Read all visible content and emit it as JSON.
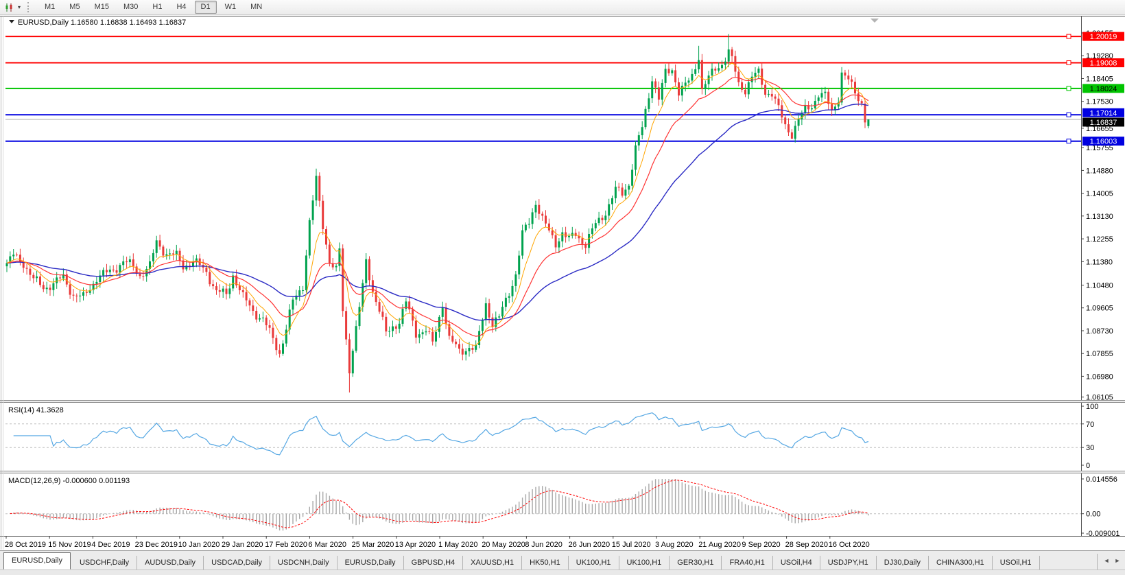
{
  "toolbar": {
    "timeframes": [
      "M1",
      "M5",
      "M15",
      "M30",
      "H1",
      "H4",
      "D1",
      "W1",
      "MN"
    ],
    "selected": "D1",
    "dropdown_caret_icon": "▾"
  },
  "chart": {
    "title": "EURUSD,Daily  1.16580 1.16838 1.16493 1.16837"
  },
  "chart_data": {
    "type": "candlestick+indicators",
    "symbol": "EURUSD",
    "timeframe": "Daily",
    "last_bar_ohlc": {
      "open": 1.1658,
      "high": 1.16838,
      "low": 1.16493,
      "close": 1.16837
    },
    "bars": 260,
    "price_axis": {
      "max": 1.2076,
      "min": 1.0607
    },
    "price_ticks": [
      [
        "1.20155",
        1.20155,
        0
      ],
      [
        "1.19280",
        1.1928,
        0
      ],
      [
        "1.18405",
        1.18405,
        0
      ],
      [
        "1.17530",
        1.1753,
        0
      ],
      [
        "1.16655",
        1.16655,
        6
      ],
      [
        "1.15755",
        1.15755,
        0
      ],
      [
        "1.14880",
        1.1488,
        0
      ],
      [
        "1.14005",
        1.14005,
        0
      ],
      [
        "1.13130",
        1.1313,
        0
      ],
      [
        "1.12255",
        1.12255,
        0
      ],
      [
        "1.11380",
        1.1138,
        0
      ],
      [
        "1.10480",
        1.1048,
        0
      ],
      [
        "1.09605",
        1.09605,
        0
      ],
      [
        "1.08730",
        1.0873,
        0
      ],
      [
        "1.07855",
        1.07855,
        0
      ],
      [
        "1.06980",
        1.0698,
        0
      ],
      [
        "1.06105",
        1.06105,
        -3
      ]
    ],
    "date_ticks": [
      "28 Oct 2019",
      "15 Nov 2019",
      "4 Dec 2019",
      "23 Dec 2019",
      "10 Jan 2020",
      "29 Jan 2020",
      "17 Feb 2020",
      "6 Mar 2020",
      "25 Mar 2020",
      "13 Apr 2020",
      "1 May 2020",
      "20 May 2020",
      "8 Jun 2020",
      "26 Jun 2020",
      "15 Jul 2020",
      "3 Aug 2020",
      "21 Aug 2020",
      "9 Sep 2020",
      "28 Sep 2020",
      "16 Oct 2020"
    ],
    "hlines": [
      {
        "price": 1.20019,
        "label": "1.20019",
        "color": "#FF0000",
        "text_color": "#FFFFFF",
        "tag_dy": 0
      },
      {
        "price": 1.19008,
        "label": "1.19008",
        "color": "#FF0000",
        "text_color": "#FFFFFF",
        "tag_dy": 0
      },
      {
        "price": 1.18024,
        "label": "1.18024",
        "color": "#00C400",
        "text_color": "#000000",
        "tag_dy": 0
      },
      {
        "price": 1.17014,
        "label": "1.17014",
        "color": "#0000E0",
        "text_color": "#FFFFFF",
        "tag_dy": -3
      },
      {
        "price": 1.16003,
        "label": "1.16003",
        "color": "#0000E0",
        "text_color": "#FFFFFF",
        "tag_dy": 0
      }
    ],
    "current_price": {
      "value": 1.16837,
      "label": "1.16837",
      "tag_bg": "#000000",
      "tag_text": "#FFFFFF"
    },
    "ma_periods": {
      "fast": 8,
      "mid": 20,
      "slow": 50
    },
    "rsi": {
      "label": "RSI(14) 41.3628",
      "period": 14,
      "value": 41.3628,
      "levels": [
        70,
        30
      ],
      "axis": [
        [
          "100",
          100
        ],
        [
          "70",
          70
        ],
        [
          "30",
          30
        ],
        [
          "0",
          0
        ]
      ],
      "range": [
        0,
        100
      ]
    },
    "macd": {
      "label": "MACD(12,26,9) -0.000600 0.001193",
      "fast": 12,
      "slow": 26,
      "signal": 9,
      "main_value": -0.0006,
      "signal_value": 0.001193,
      "axis": [
        [
          "0.014556",
          0.014556
        ],
        [
          "0.00",
          0
        ],
        [
          "-0.009001",
          -0.009001
        ]
      ],
      "range": [
        -0.009001,
        0.014556
      ]
    },
    "colors": {
      "up": "#00A24E",
      "down": "#E93A3A",
      "ma_fast": "#FFA500",
      "ma_mid": "#FF3232",
      "ma_slow": "#2A2AC4",
      "rsi": "#55A7E3",
      "macd_hist": "#A8A8A8",
      "macd_signal": "#FF0000",
      "current_line": "#ABABAB",
      "frame": "#555555",
      "level_dash": "#BDBDBD"
    },
    "close_waypoints": [
      [
        0,
        1.1128
      ],
      [
        2,
        1.116
      ],
      [
        5,
        1.1135
      ],
      [
        8,
        1.1068
      ],
      [
        11,
        1.104
      ],
      [
        14,
        1.1052
      ],
      [
        17,
        1.1078
      ],
      [
        20,
        1.101
      ],
      [
        23,
        1.0998
      ],
      [
        27,
        1.1078
      ],
      [
        31,
        1.1098
      ],
      [
        35,
        1.1138
      ],
      [
        38,
        1.1118
      ],
      [
        40,
        1.1088
      ],
      [
        43,
        1.112
      ],
      [
        45,
        1.1212
      ],
      [
        48,
        1.117
      ],
      [
        51,
        1.1158
      ],
      [
        53,
        1.1122
      ],
      [
        56,
        1.114
      ],
      [
        60,
        1.11
      ],
      [
        63,
        1.1023
      ],
      [
        66,
        1.101
      ],
      [
        68,
        1.109
      ],
      [
        71,
        1.1
      ],
      [
        74,
        1.095
      ],
      [
        77,
        1.0916
      ],
      [
        80,
        1.084
      ],
      [
        82,
        1.079
      ],
      [
        84,
        1.088
      ],
      [
        86,
        1.0985
      ],
      [
        89,
        1.105
      ],
      [
        91,
        1.1288
      ],
      [
        93,
        1.145
      ],
      [
        95,
        1.128
      ],
      [
        97,
        1.114
      ],
      [
        99,
        1.11
      ],
      [
        100,
        1.118
      ],
      [
        101,
        1.095
      ],
      [
        103,
        1.073
      ],
      [
        105,
        1.088
      ],
      [
        107,
        1.104
      ],
      [
        108,
        1.114
      ],
      [
        110,
        1.103
      ],
      [
        112,
        1.095
      ],
      [
        114,
        1.086
      ],
      [
        116,
        1.089
      ],
      [
        118,
        1.091
      ],
      [
        120,
        1.098
      ],
      [
        123,
        1.0865
      ],
      [
        126,
        1.0875
      ],
      [
        128,
        1.082
      ],
      [
        131,
        1.098
      ],
      [
        133,
        1.084
      ],
      [
        136,
        1.0795
      ],
      [
        139,
        1.081
      ],
      [
        141,
        1.0798
      ],
      [
        143,
        1.092
      ],
      [
        144,
        1.098
      ],
      [
        146,
        1.09
      ],
      [
        148,
        1.092
      ],
      [
        150,
        1.099
      ],
      [
        153,
        1.109
      ],
      [
        155,
        1.124
      ],
      [
        157,
        1.129
      ],
      [
        159,
        1.137
      ],
      [
        161,
        1.13
      ],
      [
        163,
        1.125
      ],
      [
        165,
        1.121
      ],
      [
        167,
        1.125
      ],
      [
        169,
        1.122
      ],
      [
        171,
        1.1245
      ],
      [
        174,
        1.1205
      ],
      [
        177,
        1.128
      ],
      [
        180,
        1.133
      ],
      [
        183,
        1.141
      ],
      [
        185,
        1.14
      ],
      [
        187,
        1.144
      ],
      [
        189,
        1.157
      ],
      [
        191,
        1.165
      ],
      [
        193,
        1.178
      ],
      [
        194,
        1.1847
      ],
      [
        196,
        1.176
      ],
      [
        198,
        1.186
      ],
      [
        200,
        1.188
      ],
      [
        202,
        1.179
      ],
      [
        204,
        1.181
      ],
      [
        206,
        1.185
      ],
      [
        208,
        1.193
      ],
      [
        209,
        1.1796
      ],
      [
        211,
        1.184
      ],
      [
        213,
        1.188
      ],
      [
        215,
        1.19
      ],
      [
        217,
        1.194
      ],
      [
        218,
        1.191
      ],
      [
        220,
        1.182
      ],
      [
        222,
        1.18
      ],
      [
        224,
        1.1845
      ],
      [
        226,
        1.186
      ],
      [
        228,
        1.179
      ],
      [
        230,
        1.1785
      ],
      [
        232,
        1.172
      ],
      [
        234,
        1.166
      ],
      [
        236,
        1.163
      ],
      [
        238,
        1.168
      ],
      [
        240,
        1.172
      ],
      [
        242,
        1.174
      ],
      [
        244,
        1.178
      ],
      [
        246,
        1.177
      ],
      [
        248,
        1.1715
      ],
      [
        250,
        1.177
      ],
      [
        251,
        1.186
      ],
      [
        253,
        1.183
      ],
      [
        255,
        1.179
      ],
      [
        257,
        1.175
      ],
      [
        258,
        1.1672
      ],
      [
        259,
        1.16837
      ]
    ],
    "key_bars": [
      {
        "i": 93,
        "h": 1.1495
      },
      {
        "i": 103,
        "l": 1.0636
      },
      {
        "i": 208,
        "h": 1.1966
      },
      {
        "i": 217,
        "h": 1.2011
      },
      {
        "i": 236,
        "l": 1.1612
      },
      {
        "i": 258,
        "o": 1.1744,
        "h": 1.1758,
        "l": 1.165,
        "c": 1.1672
      },
      {
        "i": 259,
        "o": 1.1658,
        "h": 1.16838,
        "l": 1.16493,
        "c": 1.16837
      }
    ]
  },
  "tabbar": {
    "items": [
      "EURUSD,Daily",
      "USDCHF,Daily",
      "AUDUSD,Daily",
      "USDCAD,Daily",
      "USDCNH,Daily",
      "EURUSD,Daily",
      "GBPUSD,H4",
      "XAUUSD,H1",
      "HK50,H1",
      "UK100,H1",
      "UK100,H1",
      "GER30,H1",
      "FRA40,H1",
      "USOil,H4",
      "USDJPY,H1",
      "DJ30,Daily",
      "CHINA300,H1",
      "USOil,H1"
    ],
    "active_index": 0,
    "scroll_left_icon": "◄",
    "scroll_right_icon": "►"
  }
}
